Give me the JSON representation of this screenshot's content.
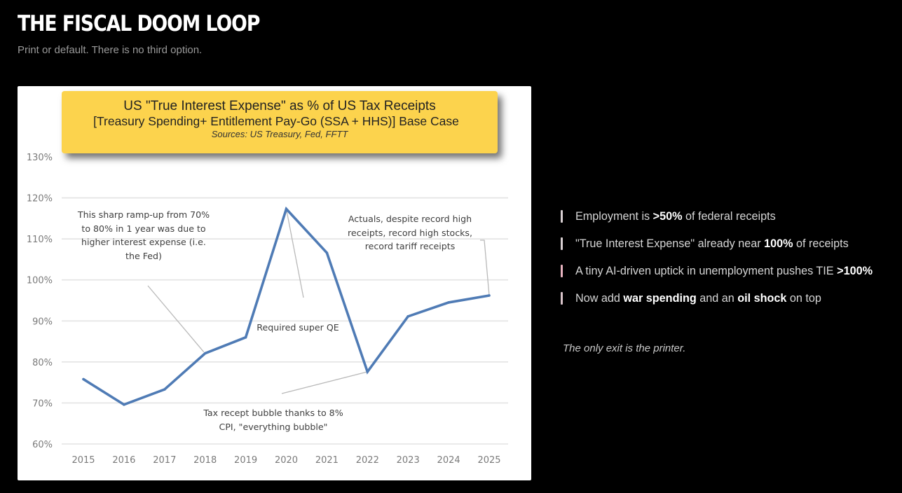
{
  "header": {
    "title": "THE FISCAL DOOM LOOP",
    "subtitle": "Print or default. There is no third option."
  },
  "chart_data": {
    "type": "line",
    "title": "US \"True Interest Expense\" as % of US Tax Receipts",
    "subtitle": "[Treasury Spending+ Entitlement Pay-Go (SSA + HHS)] Base Case",
    "source": "Sources: US Treasury, Fed, FFTT",
    "xlabel": "",
    "ylabel": "",
    "categories": [
      "2015",
      "2016",
      "2017",
      "2018",
      "2019",
      "2020",
      "2021",
      "2022",
      "2023",
      "2024",
      "2025"
    ],
    "series": [
      {
        "name": "True Interest Expense % of Tax Receipts",
        "values": [
          75.8,
          69.6,
          73.3,
          82.1,
          86.0,
          117.3,
          106.6,
          77.6,
          91.1,
          94.5,
          96.2
        ]
      }
    ],
    "yticks": [
      "60%",
      "70%",
      "80%",
      "90%",
      "100%",
      "110%",
      "120%",
      "130%"
    ],
    "ylim": [
      60,
      130
    ],
    "grid": true,
    "legend": "none",
    "line_color": "#4f7bb5",
    "annotations": [
      {
        "text": "This sharp ramp-up from 70%\nto 80% in 1 year was due to\nhigher interest expense (i.e.\nthe Fed)",
        "target": "2018"
      },
      {
        "text": "Required super QE",
        "target": "2020"
      },
      {
        "text": "Actuals, despite record high\nreceipts, record high stocks,\nrecord tariff receipts",
        "target": "2025"
      },
      {
        "text": "Tax recept bubble thanks to 8%\nCPI, \"everything bubble\"",
        "target": "2022"
      }
    ]
  },
  "bullets": [
    {
      "parts": [
        {
          "t": "Employment is ",
          "b": false
        },
        {
          "t": ">50%",
          "b": true
        },
        {
          "t": " of federal receipts",
          "b": false
        }
      ],
      "bar_color": "#d9d0d3"
    },
    {
      "parts": [
        {
          "t": "\"True Interest Expense\" already near ",
          "b": false
        },
        {
          "t": "100%",
          "b": true
        },
        {
          "t": " of receipts",
          "b": false
        }
      ],
      "bar_color": "#d9d0d3"
    },
    {
      "parts": [
        {
          "t": "A tiny AI-driven uptick in unemployment pushes TIE ",
          "b": false
        },
        {
          "t": ">100%",
          "b": true
        }
      ],
      "bar_color": "#e8b4c0"
    },
    {
      "parts": [
        {
          "t": "Now add ",
          "b": false
        },
        {
          "t": "war spending",
          "b": true
        },
        {
          "t": " and an ",
          "b": false
        },
        {
          "t": "oil shock",
          "b": true
        },
        {
          "t": " on top",
          "b": false
        }
      ],
      "bar_color": "#d9c4ca"
    }
  ],
  "closing": "The only exit is the printer."
}
